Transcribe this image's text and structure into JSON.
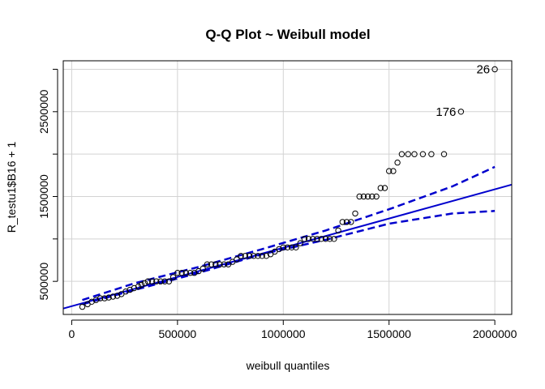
{
  "chart_data": {
    "type": "scatter",
    "title": "Q-Q Plot ~ Weibull model",
    "xlabel": "weibull quantiles",
    "ylabel": "R_testu1$B16 + 1",
    "xlim": [
      -40000,
      2080000
    ],
    "ylim": [
      110000,
      3100000
    ],
    "x_ticks": [
      0,
      500000,
      1000000,
      1500000,
      2000000
    ],
    "x_tick_labels": [
      "0",
      "500000",
      "1000000",
      "1500000",
      "2000000"
    ],
    "y_ticks": [
      500000,
      1500000,
      2500000
    ],
    "y_tick_labels": [
      "500000",
      "1500000",
      "2500000"
    ],
    "grid": true,
    "reference_line": {
      "color": "#0000cd",
      "points": [
        [
          -40000,
          180000
        ],
        [
          2080000,
          1640000
        ]
      ]
    },
    "confidence_band": {
      "color": "#0000cd",
      "upper": [
        [
          50000,
          280000
        ],
        [
          300000,
          480000
        ],
        [
          600000,
          670000
        ],
        [
          900000,
          880000
        ],
        [
          1200000,
          1100000
        ],
        [
          1500000,
          1350000
        ],
        [
          1800000,
          1620000
        ],
        [
          2000000,
          1850000
        ]
      ],
      "lower": [
        [
          50000,
          230000
        ],
        [
          300000,
          400000
        ],
        [
          600000,
          600000
        ],
        [
          900000,
          820000
        ],
        [
          1200000,
          990000
        ],
        [
          1500000,
          1180000
        ],
        [
          1800000,
          1300000
        ],
        [
          2000000,
          1330000
        ]
      ]
    },
    "points": [
      [
        50000,
        200000
      ],
      [
        75000,
        230000
      ],
      [
        95000,
        260000
      ],
      [
        115000,
        280000
      ],
      [
        135000,
        300000
      ],
      [
        155000,
        300000
      ],
      [
        175000,
        310000
      ],
      [
        195000,
        320000
      ],
      [
        215000,
        330000
      ],
      [
        235000,
        350000
      ],
      [
        255000,
        380000
      ],
      [
        275000,
        400000
      ],
      [
        295000,
        420000
      ],
      [
        315000,
        440000
      ],
      [
        330000,
        460000
      ],
      [
        345000,
        480000
      ],
      [
        360000,
        500000
      ],
      [
        380000,
        500000
      ],
      [
        400000,
        500000
      ],
      [
        420000,
        500000
      ],
      [
        440000,
        500000
      ],
      [
        460000,
        500000
      ],
      [
        480000,
        550000
      ],
      [
        500000,
        600000
      ],
      [
        520000,
        600000
      ],
      [
        540000,
        600000
      ],
      [
        560000,
        600000
      ],
      [
        580000,
        600000
      ],
      [
        600000,
        620000
      ],
      [
        620000,
        650000
      ],
      [
        640000,
        700000
      ],
      [
        660000,
        700000
      ],
      [
        680000,
        700000
      ],
      [
        700000,
        700000
      ],
      [
        720000,
        700000
      ],
      [
        740000,
        700000
      ],
      [
        760000,
        730000
      ],
      [
        780000,
        760000
      ],
      [
        800000,
        800000
      ],
      [
        820000,
        800000
      ],
      [
        840000,
        800000
      ],
      [
        860000,
        800000
      ],
      [
        880000,
        800000
      ],
      [
        900000,
        800000
      ],
      [
        920000,
        800000
      ],
      [
        940000,
        820000
      ],
      [
        960000,
        850000
      ],
      [
        980000,
        880000
      ],
      [
        1000000,
        900000
      ],
      [
        1020000,
        900000
      ],
      [
        1040000,
        900000
      ],
      [
        1060000,
        900000
      ],
      [
        1080000,
        950000
      ],
      [
        1100000,
        1000000
      ],
      [
        1120000,
        1000000
      ],
      [
        1140000,
        1000000
      ],
      [
        1160000,
        1000000
      ],
      [
        1180000,
        1000000
      ],
      [
        1200000,
        1000000
      ],
      [
        1220000,
        1000000
      ],
      [
        1240000,
        1000000
      ],
      [
        1260000,
        1100000
      ],
      [
        1280000,
        1200000
      ],
      [
        1300000,
        1200000
      ],
      [
        1320000,
        1200000
      ],
      [
        1340000,
        1300000
      ],
      [
        1360000,
        1500000
      ],
      [
        1380000,
        1500000
      ],
      [
        1400000,
        1500000
      ],
      [
        1420000,
        1500000
      ],
      [
        1440000,
        1500000
      ],
      [
        1460000,
        1600000
      ],
      [
        1480000,
        1600000
      ],
      [
        1500000,
        1800000
      ],
      [
        1520000,
        1800000
      ],
      [
        1540000,
        1900000
      ],
      [
        1560000,
        2000000
      ],
      [
        1590000,
        2000000
      ],
      [
        1620000,
        2000000
      ],
      [
        1660000,
        2000000
      ],
      [
        1700000,
        2000000
      ],
      [
        1760000,
        2000000
      ],
      [
        1840000,
        2500000
      ],
      [
        2000000,
        3000000
      ]
    ],
    "annotations": [
      {
        "label": "26",
        "x": 2000000,
        "y": 3000000
      },
      {
        "label": "176",
        "x": 1840000,
        "y": 2500000
      }
    ]
  }
}
